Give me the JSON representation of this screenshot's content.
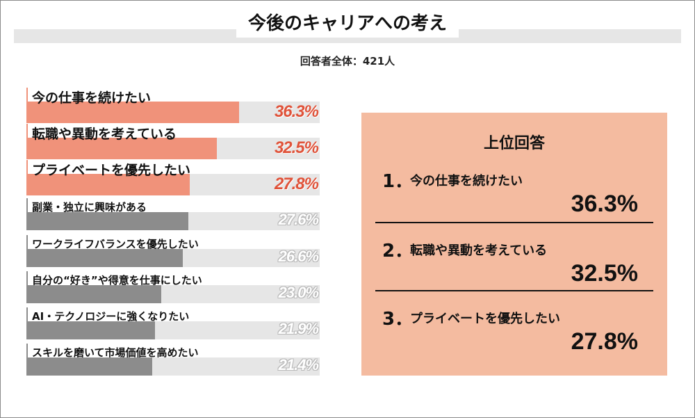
{
  "header": {
    "title": "今後のキャリアへの考え",
    "subtitle": "回答者全体：421人"
  },
  "chart_data": {
    "type": "bar",
    "orientation": "horizontal",
    "categories": [
      "今の仕事を続けたい",
      "転職や異動を考えている",
      "プライベートを優先したい",
      "副業・独立に興味がある",
      "ワークライフバランスを優先したい",
      "自分の“好き”や得意を仕事にしたい",
      "AI・テクノロジーに強くなりたい",
      "スキルを磨いて市場価値を高めたい"
    ],
    "values": [
      36.3,
      32.5,
      27.8,
      27.6,
      26.6,
      23.0,
      21.9,
      21.4
    ],
    "value_labels": [
      "36.3%",
      "32.5%",
      "27.8%",
      "27.6%",
      "26.6%",
      "23.0%",
      "21.9%",
      "21.4%"
    ],
    "unit": "%",
    "xlim": [
      0,
      100
    ],
    "highlight_count": 3,
    "colors": {
      "highlight": "#f0927a",
      "other": "#8c8c8c",
      "track": "#e6e6e6",
      "highlight_text": "#e0533a"
    }
  },
  "ranking_panel": {
    "title": "上位回答",
    "items": [
      {
        "rank": "1．",
        "label": "今の仕事を続けたい",
        "value": "36.3%"
      },
      {
        "rank": "2．",
        "label": "転職や異動を考えている",
        "value": "32.5%"
      },
      {
        "rank": "3．",
        "label": "プライベートを優先したい",
        "value": "27.8%"
      }
    ],
    "background": "#f4bba0"
  }
}
